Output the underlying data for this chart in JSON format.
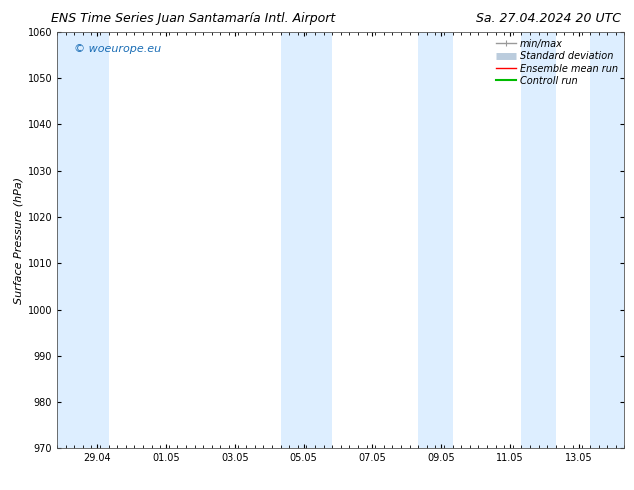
{
  "title_left": "ENS Time Series Juan Santamaría Intl. Airport",
  "title_right": "Sa. 27.04.2024 20 UTC",
  "ylabel": "Surface Pressure (hPa)",
  "ylim": [
    970,
    1060
  ],
  "yticks": [
    970,
    980,
    990,
    1000,
    1010,
    1020,
    1030,
    1040,
    1050,
    1060
  ],
  "xtick_labels": [
    "29.04",
    "01.05",
    "03.05",
    "05.05",
    "07.05",
    "09.05",
    "11.05",
    "13.05"
  ],
  "xtick_positions": [
    1.167,
    3.167,
    5.167,
    7.167,
    9.167,
    11.167,
    13.167,
    15.167
  ],
  "xlim": [
    0,
    16.5
  ],
  "shaded_bands": [
    {
      "x_start": 0.0,
      "x_end": 1.5
    },
    {
      "x_start": 6.5,
      "x_end": 8.0
    },
    {
      "x_start": 10.5,
      "x_end": 11.5
    },
    {
      "x_start": 13.5,
      "x_end": 14.5
    },
    {
      "x_start": 15.5,
      "x_end": 16.5
    }
  ],
  "band_color": "#ddeeff",
  "watermark": "© woeurope.eu",
  "watermark_color": "#1a6db5",
  "background_color": "#ffffff",
  "plot_bg_color": "#ffffff",
  "legend_items": [
    {
      "label": "min/max",
      "color": "#999999",
      "lw": 1.0
    },
    {
      "label": "Standard deviation",
      "color": "#bbccdd",
      "lw": 5
    },
    {
      "label": "Ensemble mean run",
      "color": "#ff0000",
      "lw": 1.0
    },
    {
      "label": "Controll run",
      "color": "#00bb00",
      "lw": 1.5
    }
  ],
  "title_fontsize": 9,
  "tick_fontsize": 7,
  "ylabel_fontsize": 8,
  "watermark_fontsize": 8,
  "legend_fontsize": 7,
  "fig_width": 6.34,
  "fig_height": 4.9,
  "dpi": 100
}
